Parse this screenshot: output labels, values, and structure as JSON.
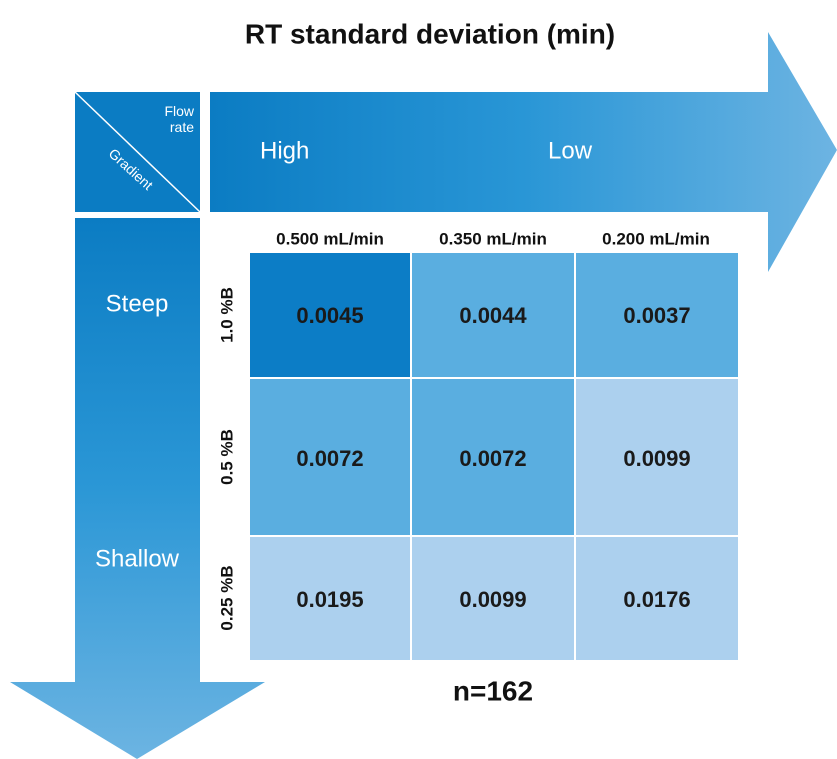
{
  "title": "RT standard deviation (min)",
  "corner": {
    "column_axis": "Flow rate",
    "row_axis": "Gradient"
  },
  "column_arrow": {
    "start": "High",
    "end": "Low"
  },
  "row_arrow": {
    "start": "Steep",
    "end": "Shallow"
  },
  "table": {
    "columns": [
      "0.500 mL/min",
      "0.350 mL/min",
      "0.200 mL/min"
    ],
    "rows": [
      {
        "label": "1.0 %B",
        "cells": [
          "0.0045",
          "0.0044",
          "0.0037"
        ]
      },
      {
        "label": "0.5 %B",
        "cells": [
          "0.0072",
          "0.0072",
          "0.0099"
        ]
      },
      {
        "label": "0.25 %B",
        "cells": [
          "0.0195",
          "0.0099",
          "0.0176"
        ]
      }
    ]
  },
  "footnote": "n=162"
}
